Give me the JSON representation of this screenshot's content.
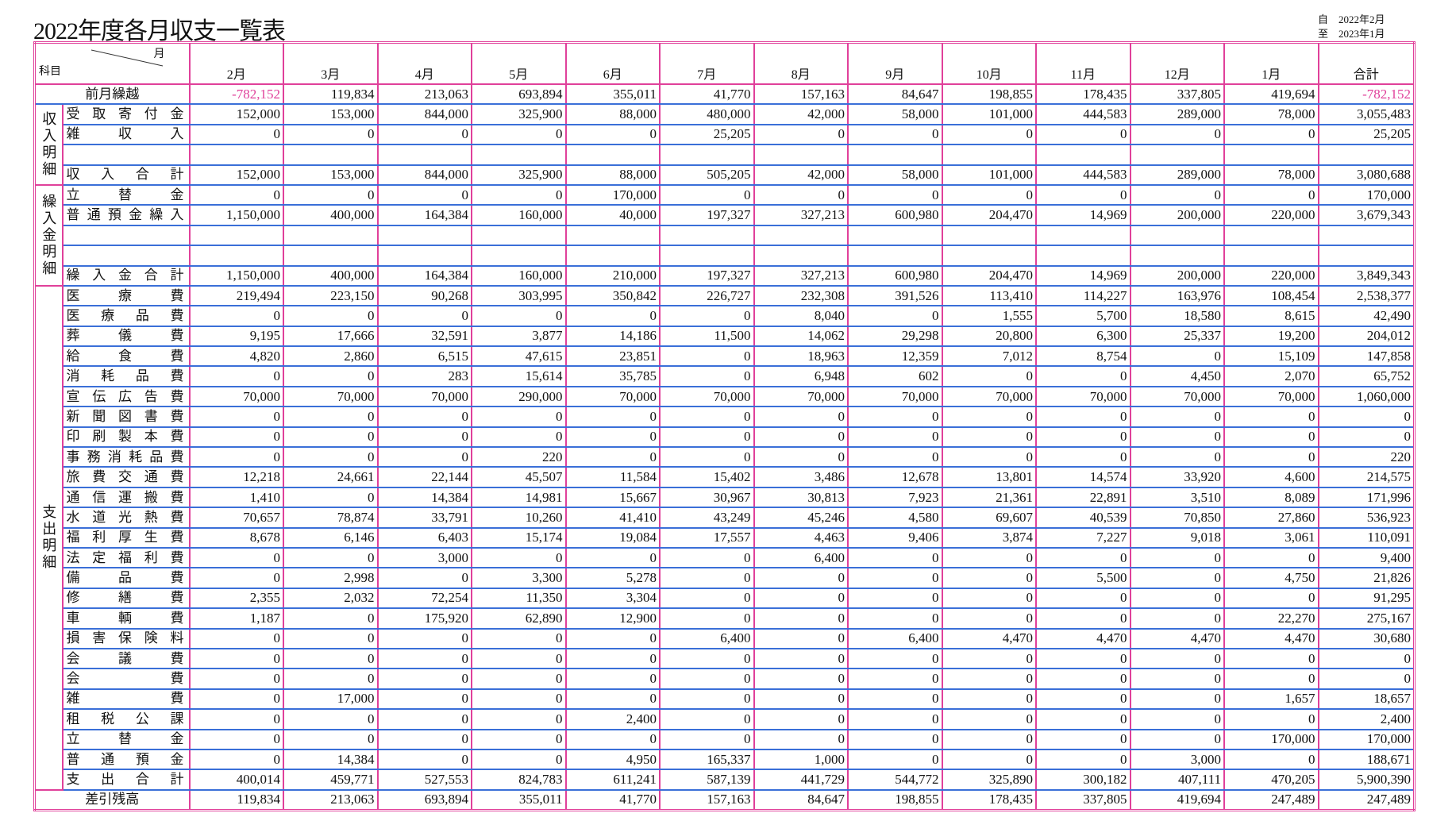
{
  "header": {
    "title": "2022年度各月収支一覧表",
    "period": {
      "from_label": "自",
      "from": "2022年2月",
      "to_label": "至",
      "to": "2023年1月"
    }
  },
  "table": {
    "corner_subject": "科目",
    "corner_month": "月",
    "columns": [
      "2月",
      "3月",
      "4月",
      "5月",
      "6月",
      "7月",
      "8月",
      "9月",
      "10月",
      "11月",
      "12月",
      "1月",
      "合計"
    ],
    "top_row": {
      "label": "前月繰越",
      "values": [
        "-782,152",
        "119,834",
        "213,063",
        "693,894",
        "355,011",
        "41,770",
        "157,163",
        "84,647",
        "198,855",
        "178,435",
        "337,805",
        "419,694",
        "-782,152"
      ]
    },
    "sections": [
      {
        "label": "収入明細",
        "rows": [
          {
            "label": "受取寄付金",
            "values": [
              "152,000",
              "153,000",
              "844,000",
              "325,900",
              "88,000",
              "480,000",
              "42,000",
              "58,000",
              "101,000",
              "444,583",
              "289,000",
              "78,000",
              "3,055,483"
            ]
          },
          {
            "label": "雑収入",
            "values": [
              "0",
              "0",
              "0",
              "0",
              "0",
              "25,205",
              "0",
              "0",
              "0",
              "0",
              "0",
              "0",
              "25,205"
            ]
          },
          {
            "label": null,
            "values": null
          },
          {
            "label": "収入合計",
            "values": [
              "152,000",
              "153,000",
              "844,000",
              "325,900",
              "88,000",
              "505,205",
              "42,000",
              "58,000",
              "101,000",
              "444,583",
              "289,000",
              "78,000",
              "3,080,688"
            ]
          }
        ]
      },
      {
        "label": "繰入金明細",
        "rows": [
          {
            "label": "立替金",
            "values": [
              "0",
              "0",
              "0",
              "0",
              "170,000",
              "0",
              "0",
              "0",
              "0",
              "0",
              "0",
              "0",
              "170,000"
            ]
          },
          {
            "label": "普通預金繰入",
            "values": [
              "1,150,000",
              "400,000",
              "164,384",
              "160,000",
              "40,000",
              "197,327",
              "327,213",
              "600,980",
              "204,470",
              "14,969",
              "200,000",
              "220,000",
              "3,679,343"
            ]
          },
          {
            "label": null,
            "values": null
          },
          {
            "label": null,
            "values": null
          },
          {
            "label": "繰入金合計",
            "values": [
              "1,150,000",
              "400,000",
              "164,384",
              "160,000",
              "210,000",
              "197,327",
              "327,213",
              "600,980",
              "204,470",
              "14,969",
              "200,000",
              "220,000",
              "3,849,343"
            ]
          }
        ]
      },
      {
        "label": "支出明細",
        "rows": [
          {
            "label": "医療費",
            "values": [
              "219,494",
              "223,150",
              "90,268",
              "303,995",
              "350,842",
              "226,727",
              "232,308",
              "391,526",
              "113,410",
              "114,227",
              "163,976",
              "108,454",
              "2,538,377"
            ]
          },
          {
            "label": "医療品費",
            "values": [
              "0",
              "0",
              "0",
              "0",
              "0",
              "0",
              "8,040",
              "0",
              "1,555",
              "5,700",
              "18,580",
              "8,615",
              "42,490"
            ]
          },
          {
            "label": "葬儀費",
            "values": [
              "9,195",
              "17,666",
              "32,591",
              "3,877",
              "14,186",
              "11,500",
              "14,062",
              "29,298",
              "20,800",
              "6,300",
              "25,337",
              "19,200",
              "204,012"
            ]
          },
          {
            "label": "給食費",
            "values": [
              "4,820",
              "2,860",
              "6,515",
              "47,615",
              "23,851",
              "0",
              "18,963",
              "12,359",
              "7,012",
              "8,754",
              "0",
              "15,109",
              "147,858"
            ]
          },
          {
            "label": "消耗品費",
            "values": [
              "0",
              "0",
              "283",
              "15,614",
              "35,785",
              "0",
              "6,948",
              "602",
              "0",
              "0",
              "4,450",
              "2,070",
              "65,752"
            ]
          },
          {
            "label": "宣伝広告費",
            "values": [
              "70,000",
              "70,000",
              "70,000",
              "290,000",
              "70,000",
              "70,000",
              "70,000",
              "70,000",
              "70,000",
              "70,000",
              "70,000",
              "70,000",
              "1,060,000"
            ]
          },
          {
            "label": "新聞図書費",
            "values": [
              "0",
              "0",
              "0",
              "0",
              "0",
              "0",
              "0",
              "0",
              "0",
              "0",
              "0",
              "0",
              "0"
            ]
          },
          {
            "label": "印刷製本費",
            "values": [
              "0",
              "0",
              "0",
              "0",
              "0",
              "0",
              "0",
              "0",
              "0",
              "0",
              "0",
              "0",
              "0"
            ]
          },
          {
            "label": "事務消耗品費",
            "values": [
              "0",
              "0",
              "0",
              "220",
              "0",
              "0",
              "0",
              "0",
              "0",
              "0",
              "0",
              "0",
              "220"
            ]
          },
          {
            "label": "旅費交通費",
            "values": [
              "12,218",
              "24,661",
              "22,144",
              "45,507",
              "11,584",
              "15,402",
              "3,486",
              "12,678",
              "13,801",
              "14,574",
              "33,920",
              "4,600",
              "214,575"
            ]
          },
          {
            "label": "通信運搬費",
            "values": [
              "1,410",
              "0",
              "14,384",
              "14,981",
              "15,667",
              "30,967",
              "30,813",
              "7,923",
              "21,361",
              "22,891",
              "3,510",
              "8,089",
              "171,996"
            ]
          },
          {
            "label": "水道光熱費",
            "values": [
              "70,657",
              "78,874",
              "33,791",
              "10,260",
              "41,410",
              "43,249",
              "45,246",
              "4,580",
              "69,607",
              "40,539",
              "70,850",
              "27,860",
              "536,923"
            ]
          },
          {
            "label": "福利厚生費",
            "values": [
              "8,678",
              "6,146",
              "6,403",
              "15,174",
              "19,084",
              "17,557",
              "4,463",
              "9,406",
              "3,874",
              "7,227",
              "9,018",
              "3,061",
              "110,091"
            ]
          },
          {
            "label": "法定福利費",
            "values": [
              "0",
              "0",
              "3,000",
              "0",
              "0",
              "0",
              "6,400",
              "0",
              "0",
              "0",
              "0",
              "0",
              "9,400"
            ]
          },
          {
            "label": "備品費",
            "values": [
              "0",
              "2,998",
              "0",
              "3,300",
              "5,278",
              "0",
              "0",
              "0",
              "0",
              "5,500",
              "0",
              "4,750",
              "21,826"
            ]
          },
          {
            "label": "修繕費",
            "values": [
              "2,355",
              "2,032",
              "72,254",
              "11,350",
              "3,304",
              "0",
              "0",
              "0",
              "0",
              "0",
              "0",
              "0",
              "91,295"
            ]
          },
          {
            "label": "車輌費",
            "values": [
              "1,187",
              "0",
              "175,920",
              "62,890",
              "12,900",
              "0",
              "0",
              "0",
              "0",
              "0",
              "0",
              "22,270",
              "275,167"
            ]
          },
          {
            "label": "損害保険料",
            "values": [
              "0",
              "0",
              "0",
              "0",
              "0",
              "6,400",
              "0",
              "6,400",
              "4,470",
              "4,470",
              "4,470",
              "4,470",
              "30,680"
            ]
          },
          {
            "label": "会議費",
            "values": [
              "0",
              "0",
              "0",
              "0",
              "0",
              "0",
              "0",
              "0",
              "0",
              "0",
              "0",
              "0",
              "0"
            ]
          },
          {
            "label": "会費",
            "values": [
              "0",
              "0",
              "0",
              "0",
              "0",
              "0",
              "0",
              "0",
              "0",
              "0",
              "0",
              "0",
              "0"
            ]
          },
          {
            "label": "雑費",
            "values": [
              "0",
              "17,000",
              "0",
              "0",
              "0",
              "0",
              "0",
              "0",
              "0",
              "0",
              "0",
              "1,657",
              "18,657"
            ]
          },
          {
            "label": "租税公課",
            "values": [
              "0",
              "0",
              "0",
              "0",
              "2,400",
              "0",
              "0",
              "0",
              "0",
              "0",
              "0",
              "0",
              "2,400"
            ]
          },
          {
            "label": "立替金",
            "values": [
              "0",
              "0",
              "0",
              "0",
              "0",
              "0",
              "0",
              "0",
              "0",
              "0",
              "0",
              "170,000",
              "170,000"
            ]
          },
          {
            "label": "普通預金",
            "values": [
              "0",
              "14,384",
              "0",
              "0",
              "4,950",
              "165,337",
              "1,000",
              "0",
              "0",
              "0",
              "3,000",
              "0",
              "188,671"
            ]
          },
          {
            "label": "支出合計",
            "values": [
              "400,014",
              "459,771",
              "527,553",
              "824,783",
              "611,241",
              "587,139",
              "441,729",
              "544,772",
              "325,890",
              "300,182",
              "407,111",
              "470,205",
              "5,900,390"
            ]
          }
        ]
      }
    ],
    "bottom_row": {
      "label": "差引残高",
      "values": [
        "119,834",
        "213,063",
        "693,894",
        "355,011",
        "41,770",
        "157,163",
        "84,647",
        "198,855",
        "178,435",
        "337,805",
        "419,694",
        "247,489",
        "247,489"
      ]
    }
  }
}
